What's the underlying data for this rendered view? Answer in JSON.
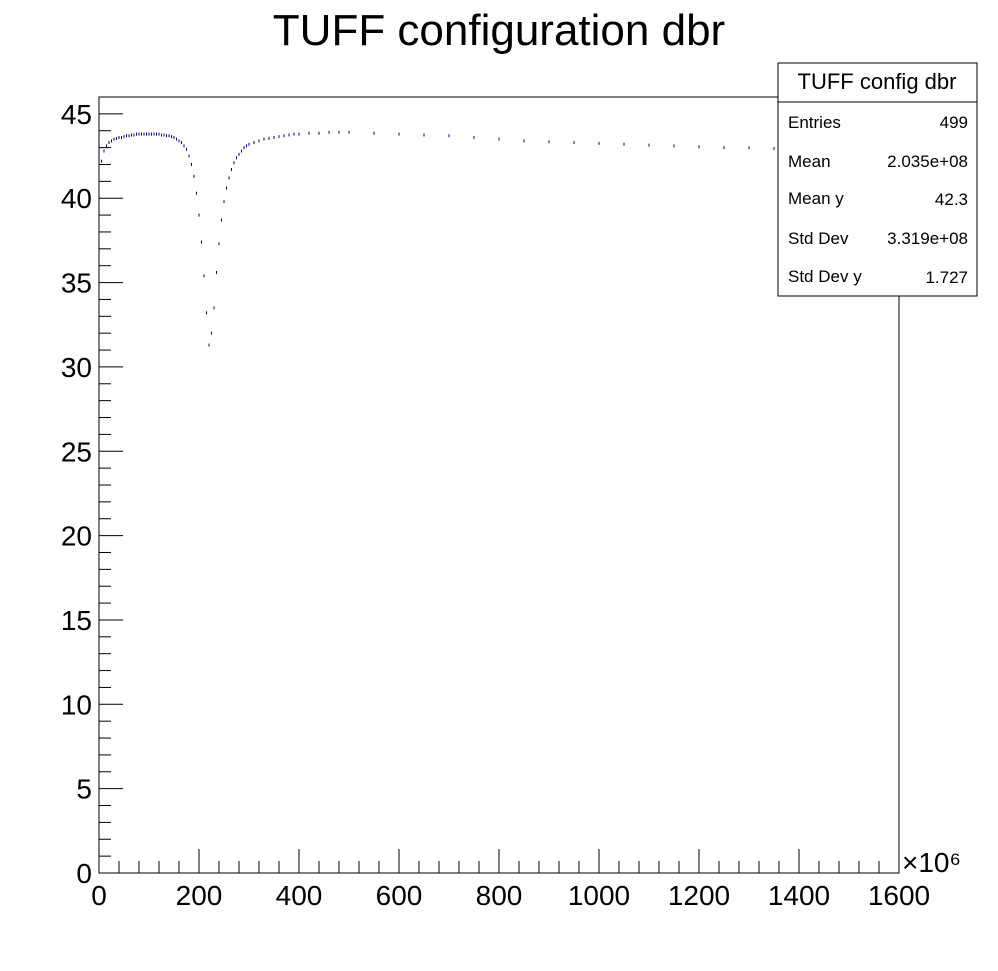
{
  "chart_data": {
    "type": "scatter",
    "title": "TUFF configuration dbr",
    "xlabel": "",
    "ylabel": "",
    "x_units_label": "×10⁶",
    "xlim": [
      0,
      1600
    ],
    "ylim": [
      0,
      46
    ],
    "x_ticks": [
      0,
      200,
      400,
      600,
      800,
      1000,
      1200,
      1400,
      1600
    ],
    "y_ticks": [
      0,
      5,
      10,
      15,
      20,
      25,
      30,
      35,
      40,
      45
    ],
    "grid": false,
    "marker_color": "#000080",
    "series": [
      {
        "x": [
          0,
          5,
          10,
          15,
          20,
          25,
          30,
          35,
          40,
          45,
          50,
          55,
          60,
          65,
          70,
          75,
          80,
          85,
          90,
          95,
          100,
          105,
          110,
          115,
          120,
          125,
          130,
          135,
          140,
          145,
          150,
          155,
          160,
          165,
          170,
          175,
          180,
          185,
          190,
          195,
          200,
          205,
          210,
          215,
          220,
          225,
          230,
          235,
          240,
          245,
          250,
          255,
          260,
          265,
          270,
          275,
          280,
          285,
          290,
          295,
          300,
          310,
          320,
          330,
          340,
          350,
          360,
          370,
          380,
          390,
          400,
          420,
          440,
          460,
          480,
          500,
          550,
          600,
          650,
          700,
          750,
          800,
          850,
          900,
          950,
          1000,
          1050,
          1100,
          1150,
          1200,
          1250,
          1300,
          1350,
          1400,
          1450,
          1500,
          1550,
          1600
        ],
        "y": [
          41.0,
          42.2,
          42.8,
          43.1,
          43.3,
          43.4,
          43.5,
          43.55,
          43.6,
          43.6,
          43.65,
          43.7,
          43.7,
          43.75,
          43.75,
          43.8,
          43.8,
          43.8,
          43.8,
          43.8,
          43.8,
          43.8,
          43.8,
          43.8,
          43.8,
          43.75,
          43.75,
          43.7,
          43.7,
          43.65,
          43.6,
          43.5,
          43.4,
          43.3,
          43.1,
          42.9,
          42.5,
          42.0,
          41.3,
          40.3,
          39.0,
          37.4,
          35.4,
          33.2,
          31.3,
          32.0,
          33.5,
          35.6,
          37.3,
          38.7,
          39.8,
          40.6,
          41.2,
          41.7,
          42.1,
          42.4,
          42.6,
          42.8,
          43.0,
          43.1,
          43.2,
          43.3,
          43.4,
          43.5,
          43.55,
          43.6,
          43.65,
          43.7,
          43.75,
          43.8,
          43.8,
          43.85,
          43.85,
          43.9,
          43.9,
          43.9,
          43.85,
          43.8,
          43.75,
          43.7,
          43.6,
          43.5,
          43.4,
          43.35,
          43.3,
          43.25,
          43.2,
          43.15,
          43.1,
          43.05,
          43.0,
          43.0,
          42.95,
          42.9,
          42.9,
          42.85,
          42.85,
          42.8
        ]
      }
    ],
    "stats_box": {
      "title": "TUFF config dbr",
      "rows": [
        {
          "label": "Entries",
          "value": "499"
        },
        {
          "label": "Mean",
          "value": "2.035e+08"
        },
        {
          "label": "Mean y",
          "value": "42.3"
        },
        {
          "label": "Std Dev",
          "value": "3.319e+08"
        },
        {
          "label": "Std Dev y",
          "value": "1.727"
        }
      ]
    }
  }
}
